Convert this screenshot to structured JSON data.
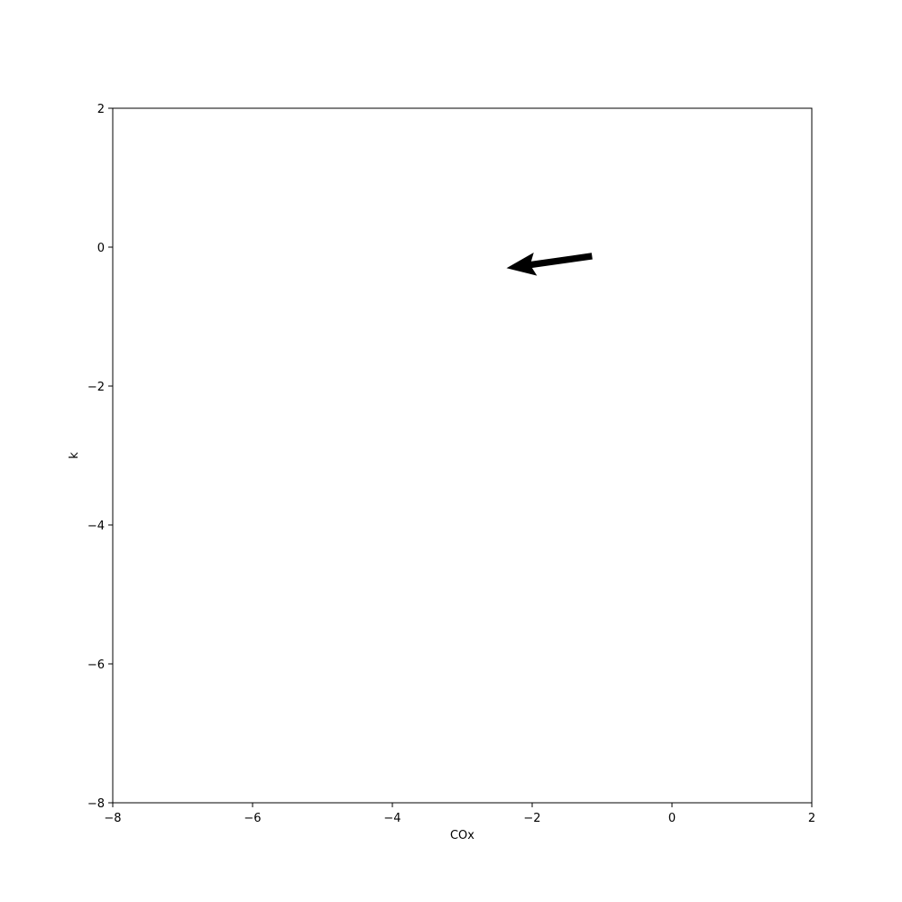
{
  "chart_data": {
    "type": "quiver",
    "xlabel": "COx",
    "ylabel": "k",
    "xlim": [
      -8,
      2
    ],
    "ylim": [
      -8,
      2
    ],
    "grid": false,
    "x_ticks": [
      -8,
      -6,
      -4,
      -2,
      0,
      2
    ],
    "y_ticks": [
      -8,
      -6,
      -4,
      -2,
      0,
      2
    ],
    "x_tick_labels": [
      "−8",
      "−6",
      "−4",
      "−2",
      "0",
      "2"
    ],
    "y_tick_labels": [
      "−8",
      "−6",
      "−4",
      "−2",
      "0",
      "2"
    ],
    "arrows": [
      {
        "x": -1.15,
        "y": -0.13,
        "u": -1.2,
        "v": -0.17,
        "color": "#000000"
      }
    ]
  }
}
